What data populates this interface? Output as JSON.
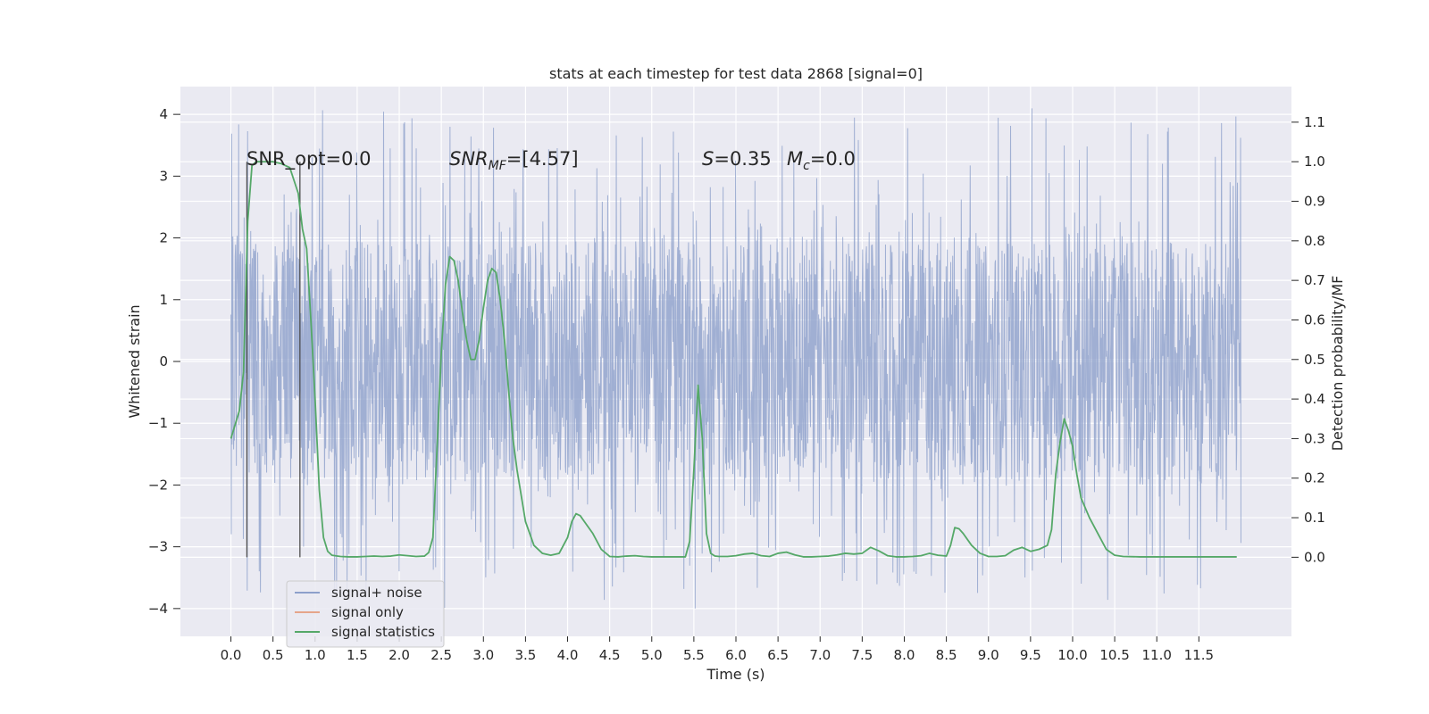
{
  "chart_data": {
    "type": "line",
    "title": "stats at each timestep for test data 2868 [signal=0]",
    "xlabel": "Time (s)",
    "ylabel": "Whitened strain",
    "ylabel_right": "Detection probability/MF",
    "xlim": [
      -0.6,
      12.6
    ],
    "ylim": [
      -4.45,
      4.45
    ],
    "ylim_right": [
      -0.2,
      1.19
    ],
    "x_ticks": [
      0.0,
      0.5,
      1.0,
      1.5,
      2.0,
      2.5,
      3.0,
      3.5,
      4.0,
      4.5,
      5.0,
      5.5,
      6.0,
      6.5,
      7.0,
      7.5,
      8.0,
      8.5,
      9.0,
      9.5,
      10.0,
      10.5,
      11.0,
      11.5
    ],
    "x_tick_labels": [
      "0.0",
      "0.5",
      "1.0",
      "1.5",
      "2.0",
      "2.5",
      "3.0",
      "3.5",
      "4.0",
      "4.5",
      "5.0",
      "5.5",
      "6.0",
      "6.5",
      "7.0",
      "7.5",
      "8.0",
      "8.5",
      "9.0",
      "9.5",
      "10.0",
      "10.5",
      "11.0",
      "11.5"
    ],
    "y_ticks": [
      4,
      3,
      2,
      1,
      0,
      -1,
      -2,
      -3,
      -4
    ],
    "y_tick_labels": [
      "4",
      "3",
      "2",
      "1",
      "0",
      "−1",
      "−2",
      "−3",
      "−4"
    ],
    "y_ticks_right": [
      1.1,
      1.0,
      0.9,
      0.8,
      0.7,
      0.6,
      0.5,
      0.4,
      0.3,
      0.2,
      0.1,
      0.0
    ],
    "y_tick_labels_right": [
      "1.1",
      "1.0",
      "0.9",
      "0.8",
      "0.7",
      "0.6",
      "0.5",
      "0.4",
      "0.3",
      "0.2",
      "0.1",
      "0.0"
    ],
    "grid": true,
    "legend_position": "lower-left",
    "legend": [
      "signal+ noise",
      "signal only",
      "signal statistics"
    ],
    "annotations": {
      "snr_opt": "SNR_opt=0.0",
      "snr_mf_prefix": "SNR",
      "snr_mf_sub": "MF",
      "snr_mf_value": "=[4.57]",
      "s_symbol": "S",
      "s_value": "=0.35",
      "mc_symbol": "M",
      "mc_sub": "c",
      "mc_value": "=0.0"
    },
    "markers_x": [
      0.19,
      0.82
    ],
    "series": [
      {
        "name": "signal+ noise",
        "axis": "left",
        "color": "#8da0cb",
        "x_range": [
          0.0,
          12.0
        ],
        "band": [
          -1.9,
          1.9
        ],
        "peak_range": [
          -4.0,
          4.1
        ],
        "style": "dense noise"
      },
      {
        "name": "signal only",
        "axis": "left",
        "color": "#e5a58a",
        "x": [],
        "y": []
      },
      {
        "name": "signal statistics",
        "axis": "right",
        "color": "#55a868",
        "x": [
          0.0,
          0.1,
          0.15,
          0.2,
          0.25,
          0.3,
          0.4,
          0.5,
          0.6,
          0.7,
          0.8,
          0.85,
          0.9,
          0.95,
          1.0,
          1.05,
          1.1,
          1.15,
          1.2,
          1.3,
          1.4,
          1.5,
          1.6,
          1.7,
          1.8,
          1.9,
          2.0,
          2.1,
          2.2,
          2.3,
          2.35,
          2.4,
          2.45,
          2.5,
          2.55,
          2.6,
          2.65,
          2.7,
          2.75,
          2.8,
          2.85,
          2.9,
          2.95,
          3.0,
          3.05,
          3.1,
          3.15,
          3.2,
          3.25,
          3.3,
          3.35,
          3.4,
          3.5,
          3.6,
          3.7,
          3.8,
          3.9,
          4.0,
          4.05,
          4.1,
          4.15,
          4.2,
          4.3,
          4.4,
          4.5,
          4.6,
          4.7,
          4.8,
          4.9,
          5.0,
          5.1,
          5.2,
          5.3,
          5.4,
          5.45,
          5.5,
          5.55,
          5.6,
          5.65,
          5.7,
          5.75,
          5.8,
          5.9,
          6.0,
          6.1,
          6.2,
          6.3,
          6.4,
          6.5,
          6.6,
          6.7,
          6.8,
          6.9,
          7.0,
          7.1,
          7.2,
          7.3,
          7.4,
          7.5,
          7.6,
          7.7,
          7.8,
          7.9,
          8.0,
          8.1,
          8.2,
          8.3,
          8.4,
          8.5,
          8.55,
          8.6,
          8.65,
          8.7,
          8.8,
          8.9,
          9.0,
          9.1,
          9.2,
          9.3,
          9.4,
          9.5,
          9.6,
          9.7,
          9.75,
          9.8,
          9.85,
          9.9,
          9.95,
          10.0,
          10.05,
          10.1,
          10.2,
          10.3,
          10.4,
          10.5,
          10.6,
          10.8,
          11.0,
          11.2,
          11.4,
          11.6,
          11.8,
          11.95
        ],
        "y": [
          0.3,
          0.37,
          0.47,
          0.85,
          0.99,
          1.0,
          1.0,
          1.0,
          0.995,
          0.985,
          0.92,
          0.83,
          0.78,
          0.6,
          0.4,
          0.17,
          0.05,
          0.015,
          0.005,
          0.002,
          0.001,
          0.001,
          0.002,
          0.003,
          0.002,
          0.003,
          0.006,
          0.004,
          0.002,
          0.003,
          0.012,
          0.05,
          0.28,
          0.52,
          0.69,
          0.76,
          0.75,
          0.7,
          0.62,
          0.55,
          0.5,
          0.5,
          0.55,
          0.63,
          0.7,
          0.73,
          0.72,
          0.65,
          0.55,
          0.42,
          0.3,
          0.22,
          0.09,
          0.03,
          0.01,
          0.005,
          0.01,
          0.05,
          0.09,
          0.11,
          0.105,
          0.09,
          0.06,
          0.02,
          0.002,
          0.001,
          0.003,
          0.004,
          0.002,
          0.001,
          0.001,
          0.001,
          0.001,
          0.001,
          0.04,
          0.22,
          0.435,
          0.3,
          0.06,
          0.01,
          0.003,
          0.002,
          0.002,
          0.004,
          0.008,
          0.01,
          0.004,
          0.002,
          0.01,
          0.013,
          0.006,
          0.001,
          0.001,
          0.002,
          0.003,
          0.006,
          0.01,
          0.008,
          0.01,
          0.025,
          0.016,
          0.004,
          0.001,
          0.001,
          0.002,
          0.004,
          0.01,
          0.005,
          0.003,
          0.03,
          0.075,
          0.072,
          0.06,
          0.03,
          0.01,
          0.002,
          0.002,
          0.004,
          0.018,
          0.025,
          0.015,
          0.02,
          0.03,
          0.07,
          0.21,
          0.29,
          0.35,
          0.32,
          0.28,
          0.21,
          0.15,
          0.1,
          0.06,
          0.02,
          0.005,
          0.002,
          0.001,
          0.001,
          0.001,
          0.001,
          0.001,
          0.001,
          0.001
        ]
      }
    ]
  }
}
